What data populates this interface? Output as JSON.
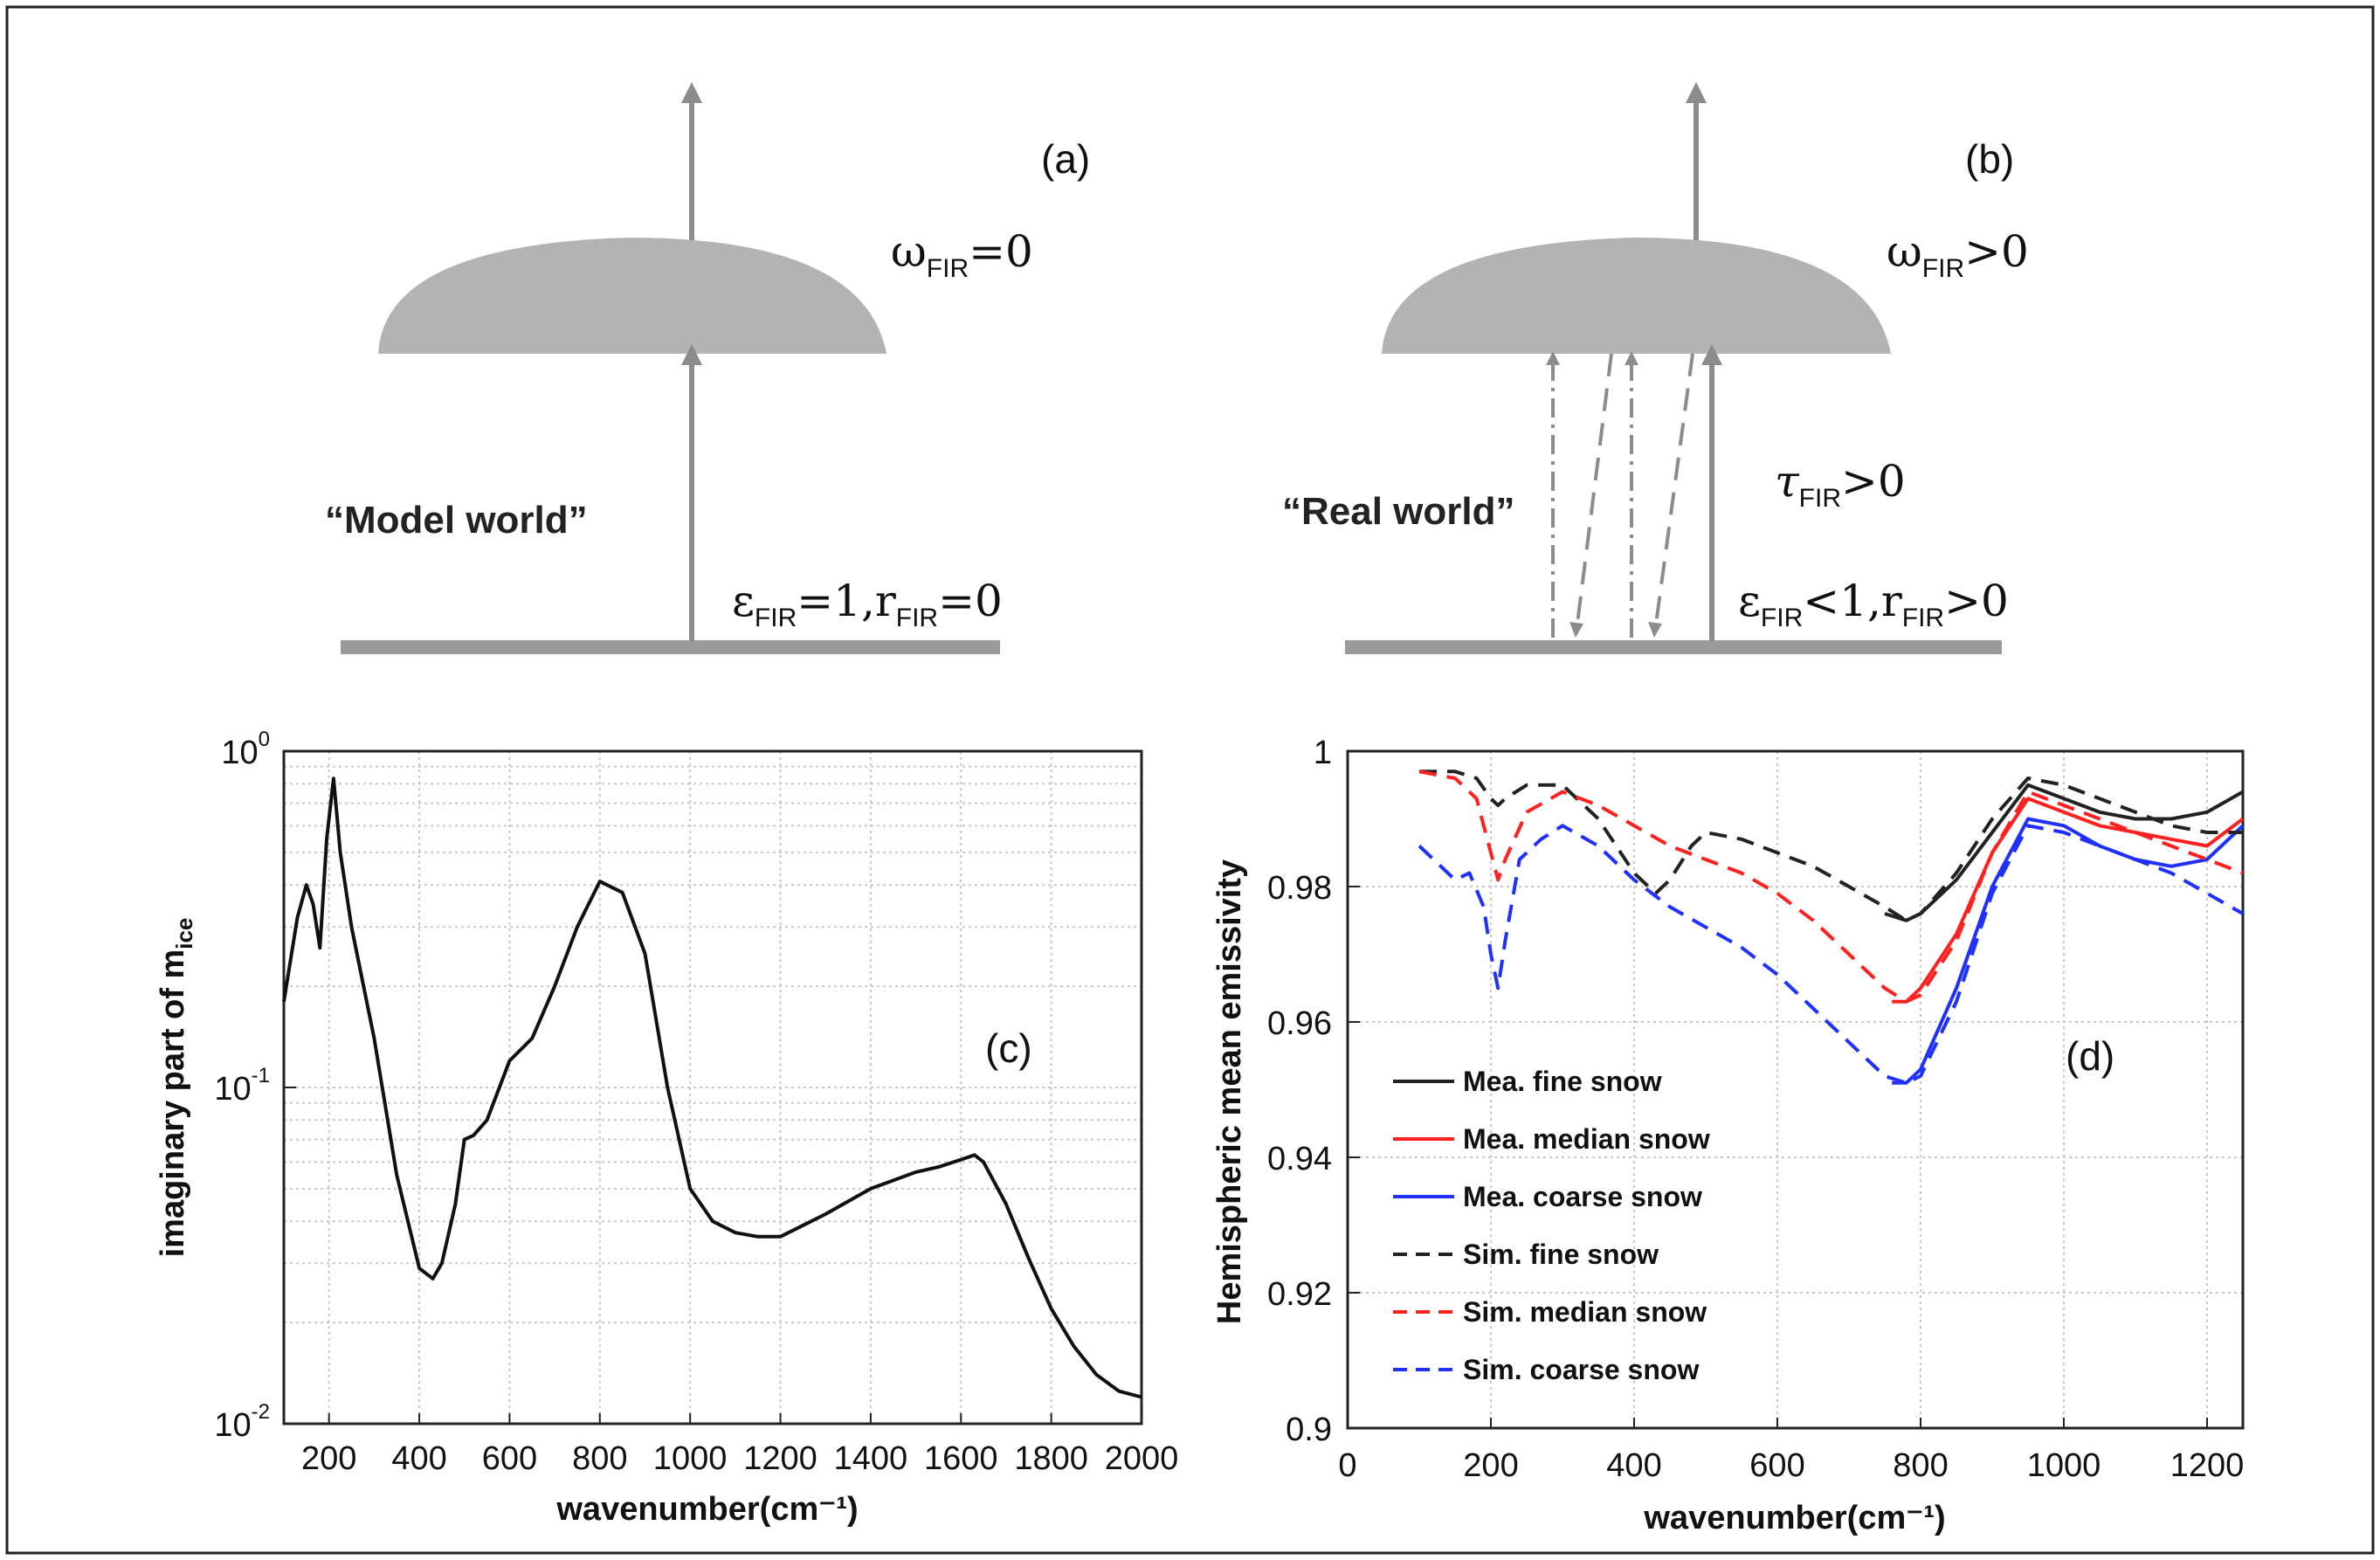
{
  "diagram_a": {
    "label": "(a)",
    "world": "“Model world”",
    "omega_sym": "ω",
    "omega_sub": "FIR",
    "omega_rel": "=0",
    "eps_sym": "ε",
    "eps_sub": "FIR",
    "eps_mid": "=1,r",
    "r_sub": "FIR",
    "eps_end": "=0"
  },
  "diagram_b": {
    "label": "(b)",
    "world": "“Real world”",
    "omega_sym": "ω",
    "omega_sub": "FIR",
    "omega_rel": ">0",
    "tau_sym": "τ",
    "tau_sub": "FIR",
    "tau_rel": ">0",
    "eps_sym": "ε",
    "eps_sub": "FIR",
    "eps_mid": "<1,r",
    "r_sub": "FIR",
    "eps_end": ">0"
  },
  "colors": {
    "diagram_gray": "#b3b3b3",
    "arrow_gray": "#8c8c8c",
    "fine": "#222222",
    "median": "#ff2020",
    "coarse": "#2030ff"
  },
  "chart_data": [
    {
      "type": "line",
      "panel_label": "(c)",
      "xlabel": "wavenumber(cm⁻¹)",
      "ylabel_main": "imaginary part of m",
      "ylabel_sub": "ice",
      "xlim": [
        100,
        2000
      ],
      "ylim": [
        0.01,
        1
      ],
      "yscale": "log",
      "xticks": [
        "200",
        "400",
        "600",
        "800",
        "1000",
        "1200",
        "1400",
        "1600",
        "1800",
        "2000"
      ],
      "yticks": [
        {
          "base": "10",
          "exp": "-2",
          "v": 0.01
        },
        {
          "base": "10",
          "exp": "-1",
          "v": 0.1
        },
        {
          "base": "10",
          "exp": "0",
          "v": 1
        }
      ],
      "grid": true,
      "series": [
        {
          "x": [
            100,
            130,
            150,
            165,
            180,
            195,
            210,
            225,
            250,
            300,
            350,
            400,
            430,
            450,
            480,
            500,
            520,
            550,
            600,
            650,
            700,
            750,
            800,
            850,
            900,
            950,
            1000,
            1050,
            1100,
            1150,
            1200,
            1300,
            1400,
            1500,
            1550,
            1600,
            1630,
            1650,
            1700,
            1750,
            1800,
            1850,
            1900,
            1950,
            2000
          ],
          "y": [
            0.18,
            0.32,
            0.4,
            0.35,
            0.26,
            0.55,
            0.83,
            0.5,
            0.3,
            0.14,
            0.055,
            0.029,
            0.027,
            0.03,
            0.045,
            0.07,
            0.072,
            0.08,
            0.12,
            0.14,
            0.2,
            0.3,
            0.41,
            0.38,
            0.25,
            0.1,
            0.05,
            0.04,
            0.037,
            0.036,
            0.036,
            0.042,
            0.05,
            0.056,
            0.058,
            0.061,
            0.063,
            0.06,
            0.045,
            0.031,
            0.022,
            0.017,
            0.014,
            0.0125,
            0.012
          ]
        }
      ]
    },
    {
      "type": "line",
      "panel_label": "(d)",
      "xlabel": "wavenumber(cm⁻¹)",
      "ylabel": "Hemispheric mean emissivity",
      "xlim": [
        0,
        1250
      ],
      "ylim": [
        0.9,
        1
      ],
      "xticks": [
        0,
        200,
        400,
        600,
        800,
        1000,
        1200
      ],
      "yticks": [
        "0.9",
        "0.92",
        "0.94",
        "0.96",
        "0.98",
        "1"
      ],
      "grid": true,
      "legend_position": "lower-left",
      "series": [
        {
          "name": "Mea. fine snow",
          "color": "#222222",
          "dash": false,
          "x": [
            750,
            780,
            800,
            850,
            900,
            950,
            1000,
            1050,
            1100,
            1150,
            1200,
            1250
          ],
          "y": [
            0.976,
            0.975,
            0.976,
            0.981,
            0.988,
            0.995,
            0.993,
            0.991,
            0.99,
            0.99,
            0.991,
            0.994
          ]
        },
        {
          "name": "Mea. median snow",
          "color": "#ff2020",
          "dash": false,
          "x": [
            760,
            780,
            800,
            850,
            900,
            950,
            1000,
            1050,
            1100,
            1150,
            1200,
            1250
          ],
          "y": [
            0.963,
            0.963,
            0.965,
            0.973,
            0.985,
            0.993,
            0.991,
            0.989,
            0.988,
            0.987,
            0.986,
            0.99
          ]
        },
        {
          "name": "Mea. coarse snow",
          "color": "#2030ff",
          "dash": false,
          "x": [
            760,
            780,
            800,
            850,
            900,
            950,
            1000,
            1050,
            1100,
            1150,
            1200,
            1250
          ],
          "y": [
            0.951,
            0.951,
            0.953,
            0.965,
            0.98,
            0.99,
            0.989,
            0.986,
            0.984,
            0.983,
            0.984,
            0.989
          ]
        },
        {
          "name": "Sim. fine snow",
          "color": "#222222",
          "dash": true,
          "x": [
            100,
            150,
            180,
            200,
            210,
            220,
            250,
            300,
            350,
            400,
            430,
            450,
            480,
            500,
            550,
            600,
            650,
            700,
            750,
            780,
            800,
            850,
            900,
            950,
            1000,
            1050,
            1100,
            1150,
            1200,
            1250
          ],
          "y": [
            0.997,
            0.997,
            0.996,
            0.993,
            0.992,
            0.993,
            0.995,
            0.995,
            0.99,
            0.982,
            0.979,
            0.981,
            0.986,
            0.988,
            0.987,
            0.985,
            0.983,
            0.98,
            0.977,
            0.975,
            0.976,
            0.982,
            0.99,
            0.996,
            0.995,
            0.993,
            0.991,
            0.989,
            0.988,
            0.988
          ]
        },
        {
          "name": "Sim. median snow",
          "color": "#ff2020",
          "dash": true,
          "x": [
            100,
            150,
            180,
            200,
            210,
            220,
            250,
            300,
            350,
            400,
            450,
            500,
            550,
            600,
            650,
            700,
            750,
            780,
            800,
            850,
            900,
            950,
            1000,
            1050,
            1100,
            1150,
            1200,
            1250
          ],
          "y": [
            0.997,
            0.996,
            0.993,
            0.985,
            0.981,
            0.984,
            0.991,
            0.994,
            0.992,
            0.989,
            0.986,
            0.984,
            0.982,
            0.979,
            0.975,
            0.97,
            0.965,
            0.963,
            0.964,
            0.972,
            0.985,
            0.994,
            0.992,
            0.99,
            0.988,
            0.986,
            0.984,
            0.982
          ]
        },
        {
          "name": "Sim. coarse snow",
          "color": "#2030ff",
          "dash": true,
          "x": [
            100,
            150,
            170,
            190,
            200,
            210,
            220,
            240,
            270,
            300,
            350,
            400,
            450,
            500,
            550,
            600,
            650,
            700,
            750,
            780,
            800,
            850,
            900,
            950,
            1000,
            1050,
            1100,
            1150,
            1200,
            1250
          ],
          "y": [
            0.986,
            0.981,
            0.982,
            0.977,
            0.97,
            0.965,
            0.972,
            0.984,
            0.987,
            0.989,
            0.986,
            0.981,
            0.977,
            0.974,
            0.971,
            0.967,
            0.962,
            0.957,
            0.952,
            0.951,
            0.952,
            0.963,
            0.979,
            0.989,
            0.988,
            0.986,
            0.984,
            0.982,
            0.979,
            0.976
          ]
        }
      ]
    }
  ]
}
